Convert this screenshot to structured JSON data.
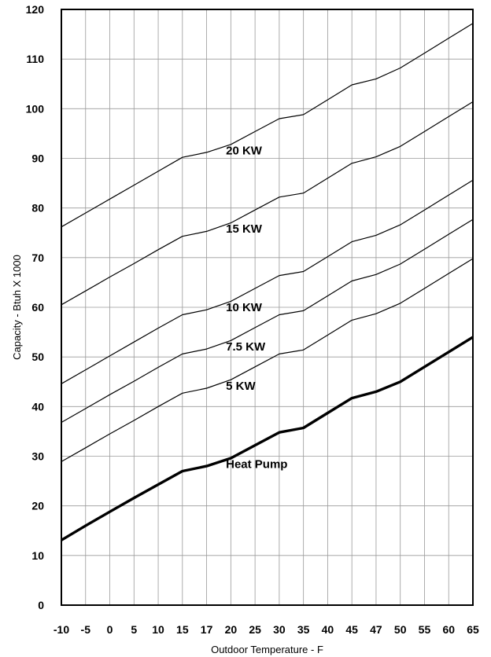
{
  "chart_data": {
    "type": "line",
    "title": "",
    "xlabel": "Outdoor Temperature - F",
    "ylabel": "Capacity - Btuh X 1000",
    "x": [
      -10,
      -5,
      0,
      5,
      10,
      15,
      17,
      20,
      25,
      30,
      35,
      40,
      45,
      47,
      50,
      55,
      60,
      65
    ],
    "x_tick_labels": [
      "-10",
      "-5",
      "0",
      "5",
      "10",
      "15",
      "17",
      "20",
      "25",
      "30",
      "35",
      "40",
      "45",
      "47",
      "50",
      "55",
      "60",
      "65"
    ],
    "x_axis_note": "x ticks are spaced evenly (categorical spacing), not proportional to temperature",
    "ylim": [
      0,
      120
    ],
    "y_ticks": [
      0,
      10,
      20,
      30,
      40,
      50,
      60,
      70,
      80,
      90,
      100,
      110,
      120
    ],
    "grid": true,
    "series": [
      {
        "name": "20 KW",
        "values": [
          76.2,
          79.0,
          81.8,
          84.6,
          87.4,
          90.2,
          91.2,
          92.8,
          95.4,
          98.0,
          98.8,
          101.8,
          104.8,
          106.0,
          108.2,
          111.2,
          114.2,
          117.2
        ]
      },
      {
        "name": "15 KW",
        "values": [
          60.5,
          63.3,
          66.1,
          68.8,
          71.6,
          74.3,
          75.3,
          77.0,
          79.6,
          82.2,
          83.0,
          86.0,
          89.0,
          90.3,
          92.4,
          95.4,
          98.4,
          101.4
        ]
      },
      {
        "name": "10 KW",
        "values": [
          44.6,
          47.4,
          50.2,
          53.0,
          55.8,
          58.5,
          59.5,
          61.2,
          63.8,
          66.4,
          67.2,
          70.2,
          73.2,
          74.5,
          76.6,
          79.6,
          82.6,
          85.6
        ]
      },
      {
        "name": "7.5 KW",
        "values": [
          36.8,
          39.6,
          42.4,
          45.1,
          47.9,
          50.6,
          51.6,
          53.3,
          55.9,
          58.5,
          59.3,
          62.3,
          65.3,
          66.6,
          68.7,
          71.7,
          74.7,
          77.7
        ]
      },
      {
        "name": "5 KW",
        "values": [
          28.9,
          31.7,
          34.5,
          37.2,
          40.0,
          42.7,
          43.7,
          45.4,
          48.0,
          50.6,
          51.4,
          54.4,
          57.4,
          58.7,
          60.8,
          63.8,
          66.8,
          69.8
        ]
      },
      {
        "name": "Heat Pump",
        "values": [
          13.1,
          16.0,
          18.8,
          21.6,
          24.3,
          27.0,
          28.0,
          29.6,
          32.2,
          34.8,
          35.7,
          38.7,
          41.7,
          43.0,
          45.0,
          48.0,
          51.0,
          54.0
        ]
      }
    ],
    "colors": {
      "line": "#000000",
      "grid": "#9a9a9a",
      "background": "#ffffff"
    }
  }
}
